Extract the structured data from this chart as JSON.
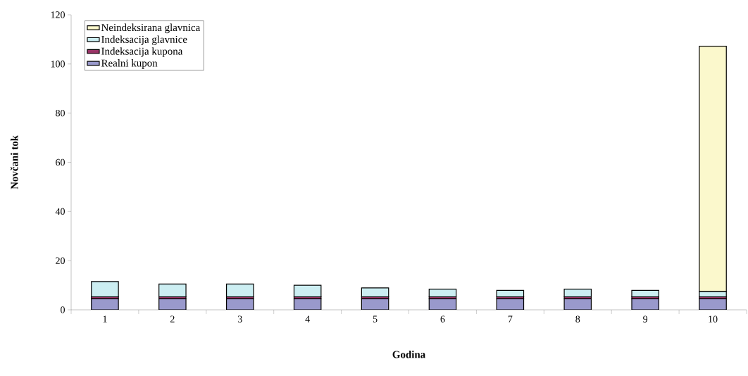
{
  "chart_data": {
    "type": "bar",
    "stacked": true,
    "xlabel": "Godina",
    "ylabel": "Novčani tok",
    "categories": [
      "1",
      "2",
      "3",
      "4",
      "5",
      "6",
      "7",
      "8",
      "9",
      "10"
    ],
    "series": [
      {
        "name": "Realni kupon",
        "color": "#9999cc",
        "values": [
          4.5,
          4.5,
          4.5,
          4.5,
          4.5,
          4.5,
          4.5,
          4.5,
          4.5,
          4.5
        ]
      },
      {
        "name": "Indeksacija kupona",
        "color": "#993366",
        "values": [
          0.8,
          0.8,
          0.8,
          0.8,
          0.8,
          0.8,
          0.8,
          0.8,
          0.8,
          0.8
        ]
      },
      {
        "name": "Indeksacija glavnice",
        "color": "#cceef2",
        "values": [
          6.2,
          5.2,
          5.2,
          4.7,
          3.6,
          3.1,
          2.6,
          3.1,
          2.6,
          2.1
        ]
      },
      {
        "name": "Neindeksirana glavnica",
        "color": "#fbf8cc",
        "values": [
          0,
          0,
          0,
          0,
          0,
          0,
          0,
          0,
          0,
          99.8
        ]
      }
    ],
    "ylim": [
      0,
      120
    ],
    "yticks": [
      0,
      20,
      40,
      60,
      80,
      100,
      120
    ],
    "grid": false,
    "legend": "top left"
  }
}
